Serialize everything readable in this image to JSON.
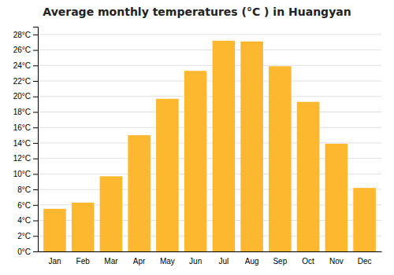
{
  "chart_data": {
    "type": "bar",
    "title": "Average monthly temperatures (°C ) in Huangyan",
    "categories": [
      "Jan",
      "Feb",
      "Mar",
      "Apr",
      "May",
      "Jun",
      "Jul",
      "Aug",
      "Sep",
      "Oct",
      "Nov",
      "Dec"
    ],
    "values": [
      5.5,
      6.3,
      9.7,
      15.0,
      19.7,
      23.3,
      27.2,
      27.1,
      23.9,
      19.3,
      13.9,
      8.2
    ],
    "color": "#FDB830",
    "ylim": [
      0,
      29
    ],
    "yticks": [
      {
        "value": 0,
        "label": "0°C"
      },
      {
        "value": 2,
        "label": "2°C"
      },
      {
        "value": 4,
        "label": "4°C"
      },
      {
        "value": 6,
        "label": "6°C"
      },
      {
        "value": 8,
        "label": "8°C"
      },
      {
        "value": 10,
        "label": "10°C"
      },
      {
        "value": 12,
        "label": "12°C"
      },
      {
        "value": 14,
        "label": "14°C"
      },
      {
        "value": 16,
        "label": "16°C"
      },
      {
        "value": 18,
        "label": "18°C"
      },
      {
        "value": 20,
        "label": "20°C"
      },
      {
        "value": 22,
        "label": "22°C"
      },
      {
        "value": 24,
        "label": "24°C"
      },
      {
        "value": 26,
        "label": "26°C"
      },
      {
        "value": 28,
        "label": "28°C"
      }
    ],
    "grid": true
  }
}
